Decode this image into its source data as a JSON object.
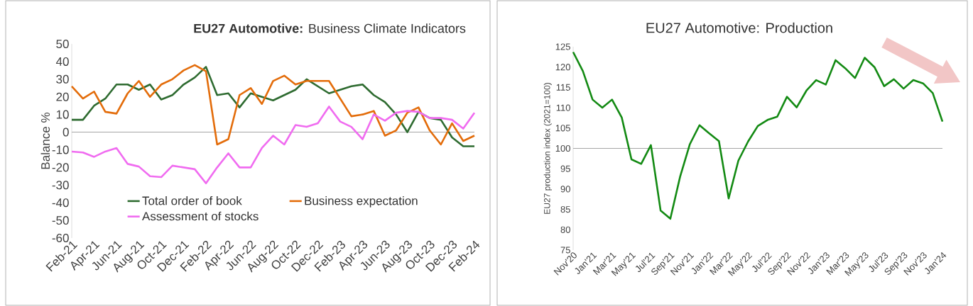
{
  "chart_data": [
    {
      "type": "line",
      "title": "**EU27 Automotive:** Business Climate Indicators",
      "ylabel": "Balance %",
      "categories": [
        "Feb-21",
        null,
        "Apr-21",
        null,
        "Jun-21",
        null,
        "Aug-21",
        null,
        "Oct-21",
        null,
        "Dec-21",
        null,
        "Feb-22",
        null,
        "Apr-22",
        null,
        "Jun-22",
        null,
        "Aug-22",
        null,
        "Oct-22",
        null,
        "Dec-22",
        null,
        "Feb-23",
        null,
        "Apr-23",
        null,
        "Jun-23",
        null,
        "Aug-23",
        null,
        "Oct-23",
        null,
        "Dec-23",
        null,
        "Feb-24"
      ],
      "series": [
        {
          "name": "Total order of book",
          "color": "#2e6b30",
          "values": [
            7,
            7,
            15,
            19,
            27,
            27,
            24,
            27,
            18.5,
            21,
            27,
            31,
            37,
            21,
            22,
            14,
            22,
            20,
            18,
            21,
            24,
            30,
            26,
            22,
            24,
            26,
            27,
            21,
            17,
            10,
            0,
            11.5,
            8,
            7,
            -3,
            -8,
            -8
          ]
        },
        {
          "name": "Business expectation",
          "color": "#e36c0a",
          "values": [
            26,
            19,
            23,
            11.5,
            10.5,
            22,
            29,
            20,
            27,
            30,
            35,
            38,
            34.5,
            -7,
            -4,
            21,
            25,
            16,
            29,
            32,
            27,
            29,
            29,
            29,
            19,
            9,
            10,
            12,
            -2,
            1,
            11,
            14,
            1,
            -7,
            5,
            -5,
            -2
          ]
        },
        {
          "name": "Assessment of stocks",
          "color": "#f06cf0",
          "values": [
            -11,
            -11.5,
            -14,
            -11,
            -9,
            -18,
            -19.5,
            -25,
            -25.5,
            -19,
            -20,
            -21,
            -29,
            -20,
            -12,
            -20,
            -20,
            -9,
            -2,
            -7,
            4,
            3,
            5,
            14.5,
            6,
            3,
            -4,
            10,
            6.5,
            11,
            12,
            11.5,
            8,
            8,
            7,
            2,
            11
          ]
        }
      ],
      "ylim": [
        -60,
        50
      ],
      "yticks": [
        -60,
        -50,
        -40,
        -30,
        -20,
        -10,
        0,
        10,
        20,
        30,
        40,
        50
      ],
      "ref_lines": [
        {
          "axis": "y",
          "value": 0,
          "color": "#a6a6a6"
        }
      ],
      "legend": "bottom"
    },
    {
      "type": "line",
      "title": "EU27 Automotive: Production",
      "ylabel": "EU27 production index (2021=100)",
      "categories": [
        "Nov'20",
        null,
        "Jan'21",
        null,
        "Mar'21",
        null,
        "May'21",
        null,
        "Jul'21",
        null,
        "Sep'21",
        null,
        "Nov'21",
        null,
        "Jan'22",
        null,
        "Mar'22",
        null,
        "May'22",
        null,
        "Jul'22",
        null,
        "Sep'22",
        null,
        "Nov'22",
        null,
        "Jan'23",
        null,
        "Mar'23",
        null,
        "May'23",
        null,
        "Jul'23",
        null,
        "Sep'23",
        null,
        "Nov'23",
        null,
        "Jan'24"
      ],
      "series": [
        {
          "color": "#138a13",
          "values": [
            123.7,
            119,
            112,
            110,
            112,
            107.6,
            97.3,
            96.2,
            100.8,
            84.7,
            82.7,
            93,
            101,
            105.7,
            103.7,
            101.8,
            87.7,
            97,
            101.7,
            105.5,
            107,
            107.8,
            112.7,
            110.1,
            114.2,
            116.8,
            115.7,
            121.7,
            119.7,
            117.3,
            122.3,
            120,
            115.3,
            117,
            114.7,
            116.8,
            116,
            113.6,
            106.6
          ]
        }
      ],
      "ylim": [
        75,
        125
      ],
      "yticks": [
        75,
        80,
        85,
        90,
        95,
        100,
        105,
        110,
        115,
        120,
        125
      ],
      "ref_lines": [
        {
          "axis": "y",
          "value": 100,
          "color": "#a6a6a6"
        }
      ]
    }
  ]
}
